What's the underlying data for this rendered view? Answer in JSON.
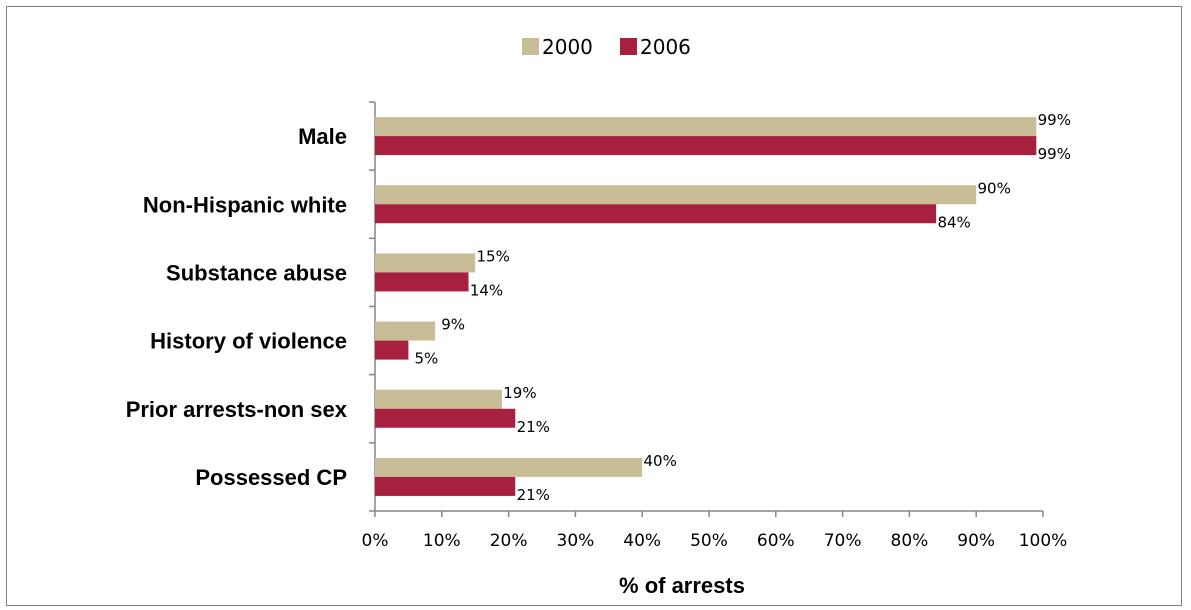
{
  "chart_data": {
    "type": "bar",
    "orientation": "horizontal",
    "categories": [
      "Male",
      "Non-Hispanic white",
      "Substance abuse",
      "History of violence",
      "Prior arrests-non sex",
      "Possessed CP"
    ],
    "series": [
      {
        "name": "2000",
        "values": [
          99,
          90,
          15,
          9,
          19,
          40
        ],
        "labels": [
          "99%",
          "90%",
          "15%",
          "9%",
          "19%",
          "40%"
        ],
        "color": "#c9bd98"
      },
      {
        "name": "2006",
        "values": [
          99,
          84,
          14,
          5,
          21,
          21
        ],
        "labels": [
          "99%",
          "84%",
          "14%",
          "5%",
          "21%",
          "21%"
        ],
        "color": "#a8203f"
      }
    ],
    "xlabel": "% of arrests",
    "xlim": [
      0,
      100
    ],
    "xticks": [
      0,
      10,
      20,
      30,
      40,
      50,
      60,
      70,
      80,
      90,
      100
    ],
    "xtick_labels": [
      "0%",
      "10%",
      "20%",
      "30%",
      "40%",
      "50%",
      "60%",
      "70%",
      "80%",
      "90%",
      "100%"
    ],
    "legend_position": "top-center",
    "grid": false
  }
}
